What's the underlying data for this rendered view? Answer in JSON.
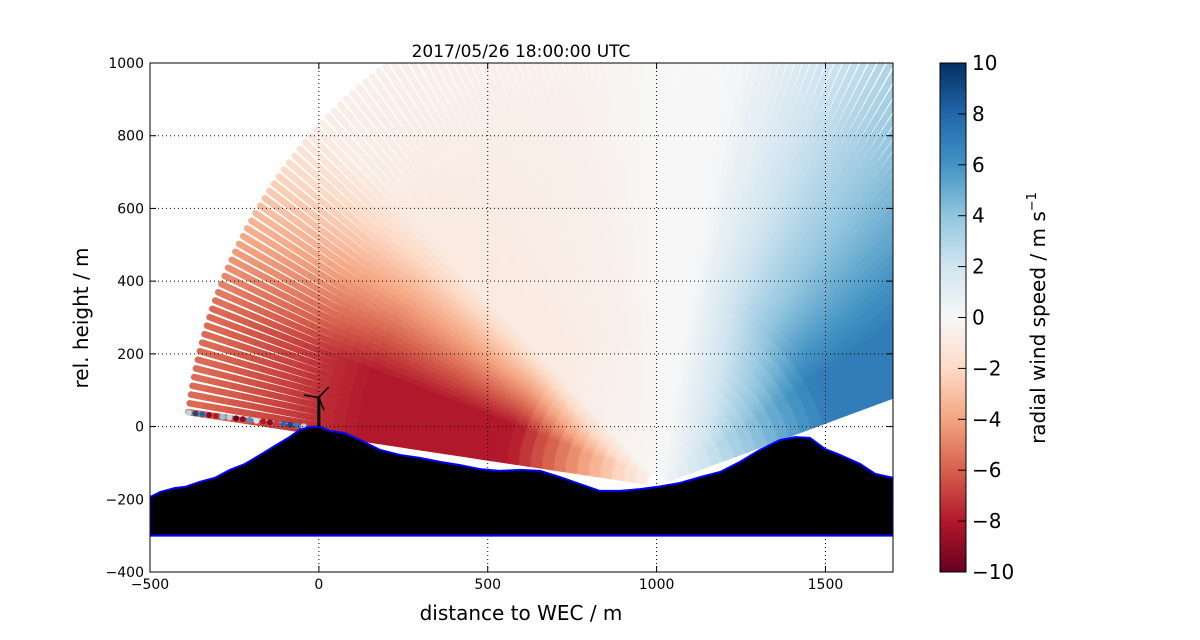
{
  "chart_data": {
    "type": "heatmap",
    "title": "2017/05/26 18:00:00 UTC",
    "xlabel": "distance to WEC / m",
    "ylabel": "rel. height / m",
    "xlim": [
      -500,
      1700
    ],
    "ylim": [
      -400,
      1000
    ],
    "xticks": [
      -500,
      0,
      500,
      1000,
      1500
    ],
    "xtick_labels": [
      "−500",
      "0",
      "500",
      "1000",
      "1500"
    ],
    "yticks": [
      -400,
      -200,
      0,
      200,
      400,
      600,
      800,
      1000
    ],
    "ytick_labels": [
      "−400",
      "−200",
      "0",
      "200",
      "400",
      "600",
      "800",
      "1000"
    ],
    "grid": true,
    "colorbar": {
      "label": "radial wind speed / m s",
      "label_superscript": "−1",
      "colormap": "RdBu",
      "range": [
        -10,
        10
      ],
      "ticks": [
        -10,
        -8,
        -6,
        -4,
        -2,
        0,
        2,
        4,
        6,
        8,
        10
      ],
      "tick_labels": [
        "−10",
        "−8",
        "−6",
        "−4",
        "−2",
        "0",
        "2",
        "4",
        "6",
        "8",
        "10"
      ]
    },
    "scanner": {
      "x": 1000,
      "y": -155,
      "max_range": 1400,
      "elevation_start_deg": 19,
      "elevation_end_deg": 172,
      "elevation_step_deg": 1
    },
    "wind_field": {
      "left_sector_peak": -8,
      "right_sector_peak": 7
    },
    "terrain": {
      "base": -300,
      "profile": [
        [
          -500,
          -194
        ],
        [
          -470,
          -180
        ],
        [
          -426,
          -169
        ],
        [
          -396,
          -166
        ],
        [
          -352,
          -152
        ],
        [
          -308,
          -141
        ],
        [
          -263,
          -119
        ],
        [
          -219,
          -103
        ],
        [
          -174,
          -78
        ],
        [
          -130,
          -53
        ],
        [
          -85,
          -28
        ],
        [
          -56,
          -9
        ],
        [
          -26,
          -1
        ],
        [
          3,
          -1
        ],
        [
          33,
          -12
        ],
        [
          77,
          -18
        ],
        [
          122,
          -37
        ],
        [
          181,
          -64
        ],
        [
          240,
          -78
        ],
        [
          299,
          -86
        ],
        [
          359,
          -97
        ],
        [
          418,
          -106
        ],
        [
          477,
          -117
        ],
        [
          536,
          -122
        ],
        [
          596,
          -119
        ],
        [
          655,
          -122
        ],
        [
          714,
          -139
        ],
        [
          773,
          -158
        ],
        [
          832,
          -177
        ],
        [
          892,
          -177
        ],
        [
          951,
          -172
        ],
        [
          1001,
          -166
        ],
        [
          1069,
          -155
        ],
        [
          1129,
          -139
        ],
        [
          1188,
          -125
        ],
        [
          1247,
          -97
        ],
        [
          1306,
          -64
        ],
        [
          1365,
          -37
        ],
        [
          1410,
          -29
        ],
        [
          1454,
          -31
        ],
        [
          1499,
          -62
        ],
        [
          1543,
          -78
        ],
        [
          1603,
          -103
        ],
        [
          1647,
          -130
        ],
        [
          1700,
          -141
        ]
      ]
    },
    "turbine": {
      "x": 0,
      "hub_height": 80,
      "rotor_radius": 45
    },
    "colors": {
      "terrain": "#000000",
      "terrain_edge": "#0000ff"
    }
  }
}
